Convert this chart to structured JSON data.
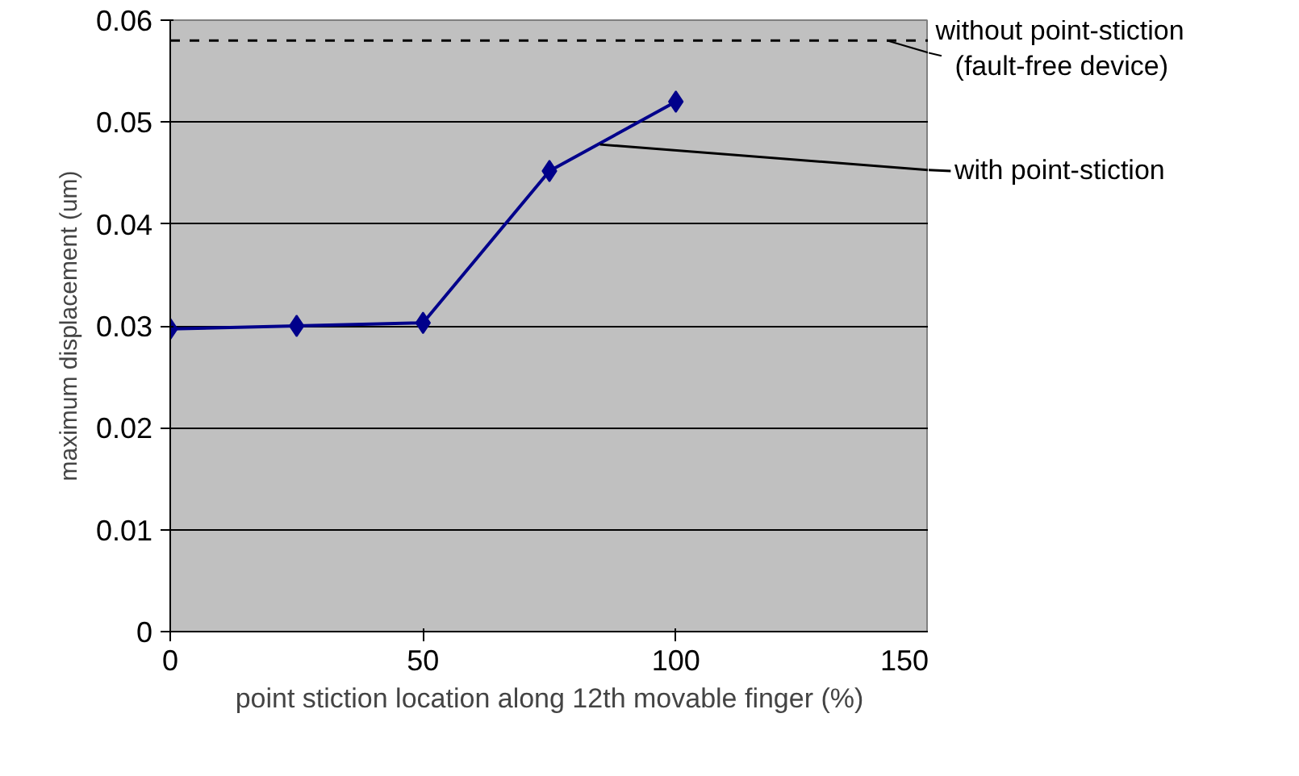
{
  "chart_data": {
    "type": "line",
    "x": [
      0,
      25,
      50,
      75,
      100
    ],
    "series": [
      {
        "color": "#00008b",
        "values": [
          0.0297,
          0.03,
          0.0303,
          0.0452,
          0.052
        ]
      }
    ],
    "xlabel": "point stiction location along 12th movable finger (%)",
    "ylabel": "maximum displacement (um)",
    "xlim": [
      0,
      150
    ],
    "xticks": [
      0,
      50,
      100,
      150
    ],
    "ylim": [
      0,
      0.06
    ],
    "yticks": [
      0,
      0.01,
      0.02,
      0.03,
      0.04,
      0.05,
      0.06
    ],
    "grid": "y",
    "marker": "diamond",
    "line_style": "solid",
    "ref_lines": [
      {
        "axis": "y",
        "value": 0.058,
        "label": "without point-stiction\n(fault-free device)",
        "color": "#000000",
        "line_style": "dashed"
      }
    ],
    "annotations": [
      {
        "text": "with point-stiction",
        "x": 85,
        "y": 0.0478
      }
    ]
  }
}
